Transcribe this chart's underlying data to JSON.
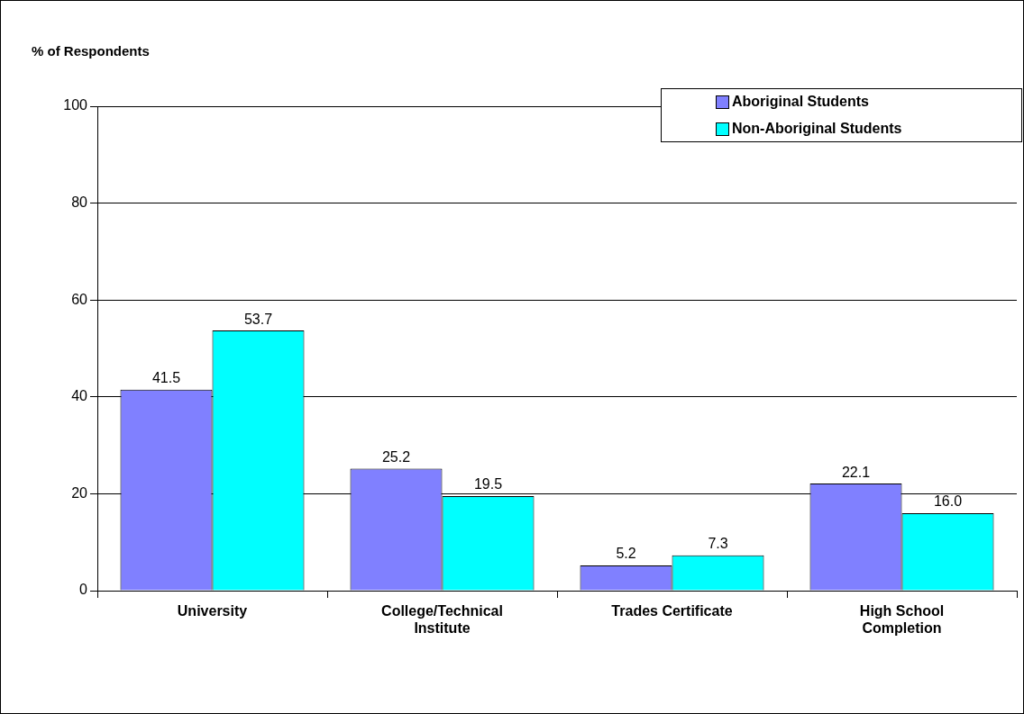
{
  "chart_data": {
    "type": "bar",
    "ylabel": "% of Respondents",
    "categories": [
      "University",
      "College/Technical Institute",
      "Trades Certificate",
      "High School Completion"
    ],
    "series": [
      {
        "name": "Aboriginal Students",
        "color": "#8080ff",
        "values": [
          41.5,
          25.2,
          5.2,
          22.1
        ],
        "value_labels": [
          "41.5",
          "25.2",
          "5.2",
          "22.1"
        ]
      },
      {
        "name": "Non-Aboriginal Students",
        "color": "#00ffff",
        "values": [
          53.7,
          19.5,
          7.3,
          16.0
        ],
        "value_labels": [
          "53.7",
          "19.5",
          "7.3",
          "16.0"
        ]
      }
    ],
    "ylim": [
      0,
      100
    ],
    "yticks": [
      0,
      20,
      40,
      60,
      80,
      100
    ],
    "grid": "y",
    "legend": "top right"
  }
}
